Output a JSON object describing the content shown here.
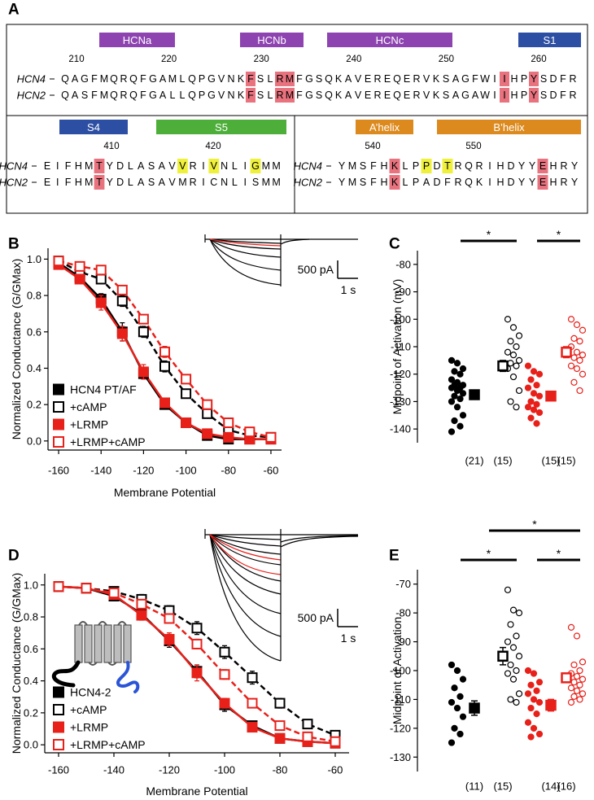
{
  "alignment": {
    "label": "A",
    "blocks": [
      {
        "domains": [
          {
            "name": "HCNa",
            "color": "#8e44b0"
          },
          {
            "name": "HCNb",
            "color": "#8e44b0"
          },
          {
            "name": "HCNc",
            "color": "#8e44b0"
          },
          {
            "name": "S1",
            "color": "#2d4fa3"
          }
        ],
        "numbers": [
          210,
          220,
          230,
          240,
          250,
          260
        ],
        "rows": [
          {
            "name": "HCN4",
            "sequence": "QAGFMQRQFGAMLQPGVNKFSLRMFGSQKAVEREQERVKSAGFWIIHPYSDFR",
            "highlights": [
              {
                "index": 19,
                "color": "#e8737e"
              },
              {
                "index": 22,
                "color": "#e8737e"
              },
              {
                "index": 23,
                "color": "#e8737e"
              },
              {
                "index": 45,
                "color": "#e8737e"
              },
              {
                "index": 48,
                "color": "#e8737e"
              }
            ]
          },
          {
            "name": "HCN2",
            "sequence": "QASFMQRQFGALLQPGVNKFSLRMFGSQKAVEREQERVKSAGAWIIHPYSDFR",
            "highlights": [
              {
                "index": 19,
                "color": "#e8737e"
              },
              {
                "index": 22,
                "color": "#e8737e"
              },
              {
                "index": 23,
                "color": "#e8737e"
              },
              {
                "index": 45,
                "color": "#e8737e"
              },
              {
                "index": 48,
                "color": "#e8737e"
              }
            ]
          }
        ]
      },
      {
        "domains": [
          {
            "name": "S4",
            "color": "#2d4fa3"
          },
          {
            "name": "S5",
            "color": "#4daf3a"
          }
        ],
        "numbers": [
          410,
          420
        ],
        "rows": [
          {
            "name": "HCN4",
            "sequence": "EIFHMTYDLASAVVRIVNLIGMM",
            "highlights": [
              {
                "index": 5,
                "color": "#e8737e"
              },
              {
                "index": 13,
                "color": "#eef03a"
              },
              {
                "index": 16,
                "color": "#eef03a"
              },
              {
                "index": 20,
                "color": "#eef03a"
              }
            ]
          },
          {
            "name": "HCN2",
            "sequence": "EIFHMTYDLASAVMRICNLISMM",
            "highlights": [
              {
                "index": 5,
                "color": "#e8737e"
              }
            ]
          }
        ]
      },
      {
        "domains": [
          {
            "name": "A’helix",
            "color": "#dc8a1e"
          },
          {
            "name": "B’helix",
            "color": "#dc8a1e"
          }
        ],
        "numbers": [
          540,
          550
        ],
        "rows": [
          {
            "name": "HCN4",
            "sequence": "YMSFHKLPPDTRQRIHDYYEHRY",
            "highlights": [
              {
                "index": 5,
                "color": "#e8737e"
              },
              {
                "index": 8,
                "color": "#eef03a"
              },
              {
                "index": 10,
                "color": "#eef03a"
              },
              {
                "index": 19,
                "color": "#e8737e"
              }
            ]
          },
          {
            "name": "HCN2",
            "sequence": "YMSFHKLPADFRQKIHDYYEHRY",
            "highlights": [
              {
                "index": 5,
                "color": "#e8737e"
              },
              {
                "index": 19,
                "color": "#e8737e"
              }
            ]
          }
        ]
      }
    ]
  },
  "chart_data": [
    {
      "type": "line",
      "label": "B",
      "xlabel": "Membrane Potential",
      "ylabel": "Normalized Conductance (G/GMax)",
      "x": [
        -160,
        -150,
        -140,
        -130,
        -120,
        -110,
        -100,
        -90,
        -80,
        -70,
        -60
      ],
      "xlim": [
        -165,
        -55
      ],
      "xticks": [
        -160,
        -140,
        -120,
        -100,
        -80,
        -60
      ],
      "ylim": [
        -0.05,
        1.06
      ],
      "yticks": [
        {
          "value": 0,
          "label": "0.0"
        },
        0.2,
        0.4,
        0.6,
        0.8,
        {
          "value": 1,
          "label": "1.0"
        }
      ],
      "legend": "lower left",
      "scale_bar": {
        "y_label": "500 pA",
        "x_label": "1 s"
      },
      "series": [
        {
          "name": "HCN4 PT/AF",
          "color": "#000000",
          "filled": true,
          "dashed": false,
          "values": [
            0.98,
            0.9,
            0.78,
            0.6,
            0.37,
            0.2,
            0.1,
            0.03,
            0.01,
            0.01,
            0.01
          ],
          "errors": [
            0.01,
            0.01,
            0.03,
            0.05,
            0.03,
            0.02,
            0.02,
            0.01,
            0.01,
            0.01,
            0.01
          ]
        },
        {
          "name": "+cAMP",
          "color": "#000000",
          "filled": false,
          "dashed": true,
          "values": [
            0.99,
            0.93,
            0.89,
            0.77,
            0.6,
            0.41,
            0.26,
            0.15,
            0.06,
            0.03,
            0.02
          ],
          "errors": [
            0.01,
            0.01,
            0.02,
            0.03,
            0.03,
            0.03,
            0.02,
            0.02,
            0.01,
            0.01,
            0.01
          ]
        },
        {
          "name": "+LRMP",
          "color": "#e8201a",
          "filled": true,
          "dashed": false,
          "values": [
            0.97,
            0.89,
            0.76,
            0.59,
            0.38,
            0.21,
            0.1,
            0.04,
            0.02,
            0.01,
            0.01
          ],
          "errors": [
            0.01,
            0.02,
            0.04,
            0.04,
            0.04,
            0.02,
            0.02,
            0.01,
            0.01,
            0.01,
            0.01
          ]
        },
        {
          "name": "+LRMP+cAMP",
          "color": "#e8201a",
          "filled": false,
          "dashed": true,
          "values": [
            0.99,
            0.96,
            0.94,
            0.83,
            0.67,
            0.49,
            0.34,
            0.2,
            0.1,
            0.05,
            0.02
          ],
          "errors": [
            0.01,
            0.01,
            0.01,
            0.02,
            0.02,
            0.03,
            0.02,
            0.02,
            0.01,
            0.01,
            0.01
          ]
        }
      ]
    },
    {
      "type": "strip",
      "label": "C",
      "ylabel": "Midpoint of Activation (mV)",
      "categories": [
        "(21)",
        "(15)",
        "(15)",
        "(15)"
      ],
      "ylim": [
        -145,
        -75
      ],
      "yticks": [
        -140,
        -130,
        -120,
        -110,
        -100,
        -90,
        -80
      ],
      "series": [
        {
          "color": "#000000",
          "filled": true,
          "values": [
            -115,
            -116,
            -118,
            -119,
            -120,
            -122,
            -123,
            -124,
            -124,
            -125,
            -125,
            -126,
            -127,
            -128,
            -129,
            -130,
            -132,
            -135,
            -137,
            -139,
            -141
          ],
          "mean": -127.5,
          "error": 1.7
        },
        {
          "color": "#000000",
          "filled": false,
          "values": [
            -100,
            -103,
            -106,
            -108,
            -110,
            -112,
            -113,
            -115,
            -116,
            -117,
            -118,
            -121,
            -126,
            -130,
            -132
          ],
          "mean": -117,
          "error": 2
        },
        {
          "color": "#e8201a",
          "filled": true,
          "values": [
            -117,
            -119,
            -120,
            -122,
            -124,
            -125,
            -127,
            -128,
            -130,
            -131,
            -132,
            -133,
            -134,
            -136,
            -138
          ],
          "mean": -128,
          "error": 1.6
        },
        {
          "color": "#e8201a",
          "filled": false,
          "values": [
            -100,
            -102,
            -104,
            -107,
            -108,
            -110,
            -112,
            -113,
            -114,
            -115,
            -117,
            -118,
            -120,
            -123,
            -126
          ],
          "mean": -112,
          "error": 2
        }
      ],
      "significance": [
        {
          "pair": [
            0,
            1
          ],
          "label": "*"
        },
        {
          "pair": [
            2,
            3
          ],
          "label": "*"
        }
      ]
    },
    {
      "type": "line",
      "label": "D",
      "xlabel": "Membrane Potential",
      "ylabel": "Normalized Conductance (G/GMax)",
      "x": [
        -160,
        -150,
        -140,
        -130,
        -120,
        -110,
        -100,
        -90,
        -80,
        -70,
        -60
      ],
      "xlim": [
        -165,
        -55
      ],
      "xticks": [
        -160,
        -140,
        -120,
        -100,
        -80,
        -60
      ],
      "ylim": [
        -0.05,
        1.07
      ],
      "yticks": [
        {
          "value": 0,
          "label": "0.0"
        },
        0.2,
        0.4,
        0.6,
        0.8,
        {
          "value": 1,
          "label": "1.0"
        }
      ],
      "legend": "lower left",
      "scale_bar": {
        "y_label": "500 pA",
        "x_label": "1 s"
      },
      "series": [
        {
          "name": "HCN4-2",
          "color": "#000000",
          "filled": true,
          "dashed": false,
          "values": [
            0.99,
            0.98,
            0.93,
            0.82,
            0.65,
            0.46,
            0.25,
            0.12,
            0.04,
            0.02,
            0.01
          ],
          "errors": [
            0.01,
            0.01,
            0.02,
            0.03,
            0.04,
            0.04,
            0.04,
            0.02,
            0.01,
            0.01,
            0.01
          ]
        },
        {
          "name": "+cAMP",
          "color": "#000000",
          "filled": false,
          "dashed": true,
          "values": [
            0.99,
            0.98,
            0.96,
            0.91,
            0.84,
            0.73,
            0.58,
            0.42,
            0.26,
            0.13,
            0.06
          ],
          "errors": [
            0.01,
            0.01,
            0.02,
            0.03,
            0.03,
            0.04,
            0.04,
            0.04,
            0.03,
            0.02,
            0.01
          ]
        },
        {
          "name": "+LRMP",
          "color": "#e8201a",
          "filled": true,
          "dashed": false,
          "values": [
            0.99,
            0.98,
            0.94,
            0.81,
            0.66,
            0.45,
            0.26,
            0.11,
            0.04,
            0.02,
            0.01
          ],
          "errors": [
            0.01,
            0.01,
            0.02,
            0.03,
            0.04,
            0.05,
            0.03,
            0.02,
            0.01,
            0.01,
            0.01
          ]
        },
        {
          "name": "+LRMP+cAMP",
          "color": "#e8201a",
          "filled": false,
          "dashed": true,
          "values": [
            0.99,
            0.98,
            0.95,
            0.88,
            0.79,
            0.63,
            0.44,
            0.26,
            0.12,
            0.05,
            0.02
          ],
          "errors": [
            0.01,
            0.01,
            0.01,
            0.02,
            0.03,
            0.03,
            0.03,
            0.02,
            0.01,
            0.01,
            0.01
          ]
        }
      ]
    },
    {
      "type": "strip",
      "label": "E",
      "ylabel": "Midpoint of Activation",
      "categories": [
        "(11)",
        "(15)",
        "(14)",
        "(16)"
      ],
      "ylim": [
        -135,
        -65
      ],
      "yticks": [
        -130,
        -120,
        -110,
        -100,
        -90,
        -80,
        -70
      ],
      "series": [
        {
          "color": "#000000",
          "filled": true,
          "values": [
            -98,
            -100,
            -103,
            -106,
            -109,
            -111,
            -113,
            -116,
            -120,
            -122,
            -125
          ],
          "mean": -113,
          "error": 2.5
        },
        {
          "color": "#000000",
          "filled": false,
          "values": [
            -72,
            -79,
            -80,
            -84,
            -88,
            -90,
            -92,
            -95,
            -98,
            -100,
            -101,
            -103,
            -108,
            -110,
            -111
          ],
          "mean": -95,
          "error": 3
        },
        {
          "color": "#e8201a",
          "filled": true,
          "values": [
            -100,
            -101,
            -104,
            -105,
            -107,
            -108,
            -110,
            -111,
            -113,
            -115,
            -118,
            -120,
            -122,
            -123
          ],
          "mean": -112,
          "error": 2
        },
        {
          "color": "#e8201a",
          "filled": false,
          "values": [
            -85,
            -88,
            -97,
            -98,
            -100,
            -101,
            -102,
            -103,
            -104,
            -105,
            -106,
            -107,
            -108,
            -109,
            -110,
            -111
          ],
          "mean": -102.5,
          "error": 1.5
        }
      ],
      "significance": [
        {
          "pair": [
            0,
            1
          ],
          "label": "*"
        },
        {
          "pair": [
            2,
            3
          ],
          "label": "*"
        },
        {
          "pair": [
            1,
            3
          ],
          "label": "*"
        }
      ]
    }
  ]
}
